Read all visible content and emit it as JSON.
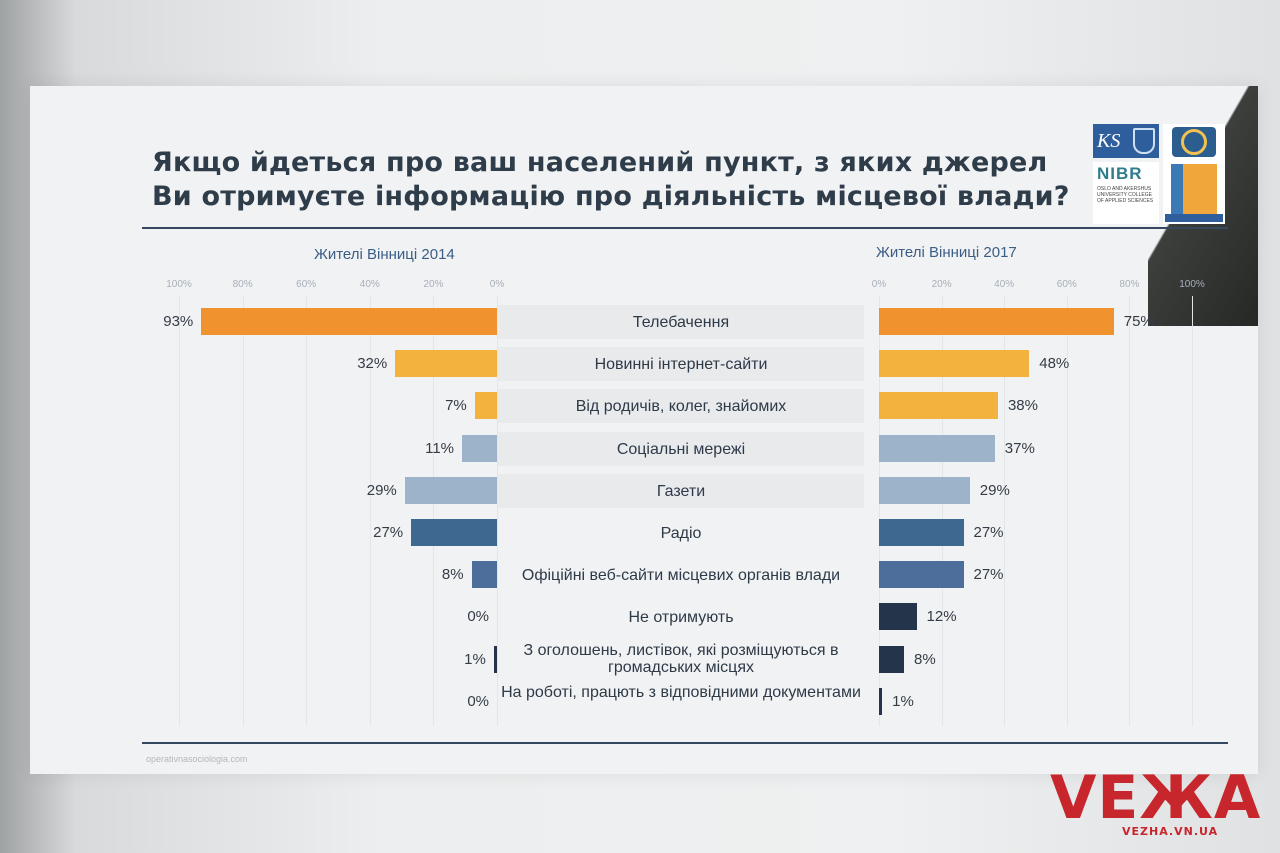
{
  "title": {
    "line1": "Якщо йдеться про ваш населений пункт, з яких джерел",
    "line2": "Ви отримуєте інформацію про діяльність місцевої влади?"
  },
  "logos": {
    "ks": "KS",
    "nibr": "NIBR",
    "nibr_sub": "OSLO AND AKERSHUS UNIVERSITY COLLEGE OF APPLIED SCIENCES"
  },
  "footer_url": "operativnasociologia.com",
  "watermark": {
    "brand": "VEЖA",
    "site": "VEZHA.VN.UA"
  },
  "colors": {
    "orange": "#f0932f",
    "yellow": "#f3b13e",
    "light_blue": "#9cb3c9",
    "mid_blue": "#3f6891",
    "slate_blue": "#4d6e9a",
    "navy": "#24344a"
  },
  "chart_data": {
    "type": "bar",
    "orientation": "horizontal",
    "categories": [
      "Телебачення",
      "Новинні інтернет-сайти",
      "Від родичів, колег, знайомих",
      "Соціальні мережі",
      "Газети",
      "Радіо",
      "Офіційні веб-сайти місцевих органів влади",
      "Не отримують",
      "З оголошень, листівок, які розміщуються в громадських місцях",
      "На роботі, працють з відповідними документами"
    ],
    "bar_colors": [
      "#f0932f",
      "#f3b13e",
      "#f3b13e",
      "#9cb3c9",
      "#9cb3c9",
      "#3f6891",
      "#4d6e9a",
      "#24344a",
      "#24344a",
      "#24344a"
    ],
    "series": [
      {
        "name": "Жителі Вінниці 2014",
        "values": [
          93,
          32,
          7,
          11,
          29,
          27,
          8,
          0,
          1,
          0
        ],
        "labels": [
          "93%",
          "32%",
          "7%",
          "11%",
          "29%",
          "27%",
          "8%",
          "0%",
          "1%",
          "0%"
        ],
        "direction": "right-to-left"
      },
      {
        "name": "Жителі Вінниці 2017",
        "values": [
          75,
          48,
          38,
          37,
          29,
          27,
          27,
          12,
          8,
          1
        ],
        "labels": [
          "75%",
          "48%",
          "38%",
          "37%",
          "29%",
          "27%",
          "27%",
          "12%",
          "8%",
          "1%"
        ],
        "direction": "left-to-right"
      }
    ],
    "ticks_left": [
      "100%",
      "80%",
      "60%",
      "40%",
      "20%",
      "0%"
    ],
    "ticks_right": [
      "0%",
      "20%",
      "40%",
      "60%",
      "80%",
      "100%"
    ],
    "xlim": [
      0,
      100
    ]
  }
}
